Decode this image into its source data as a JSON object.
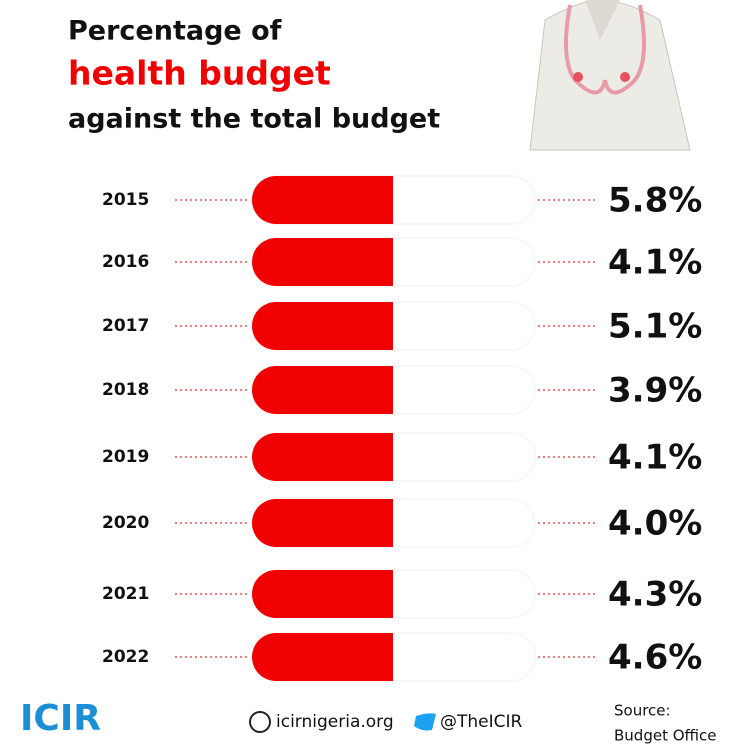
{
  "header": {
    "line1": "Percentage of",
    "line2": "health budget",
    "line3": "against the total budget"
  },
  "rows": [
    {
      "year": "2015",
      "label": "5.8%"
    },
    {
      "year": "2016",
      "label": "4.1%"
    },
    {
      "year": "2017",
      "label": "5.1%"
    },
    {
      "year": "2018",
      "label": "3.9%"
    },
    {
      "year": "2019",
      "label": "4.1%"
    },
    {
      "year": "2020",
      "label": "4.0%"
    },
    {
      "year": "2021",
      "label": "4.3%"
    },
    {
      "year": "2022",
      "label": "4.6%"
    }
  ],
  "footer": {
    "logo": "ICIR",
    "website": "icirnigeria.org",
    "handle": "@TheICIR",
    "source_label": "Source:",
    "source": "Budget Office"
  }
}
